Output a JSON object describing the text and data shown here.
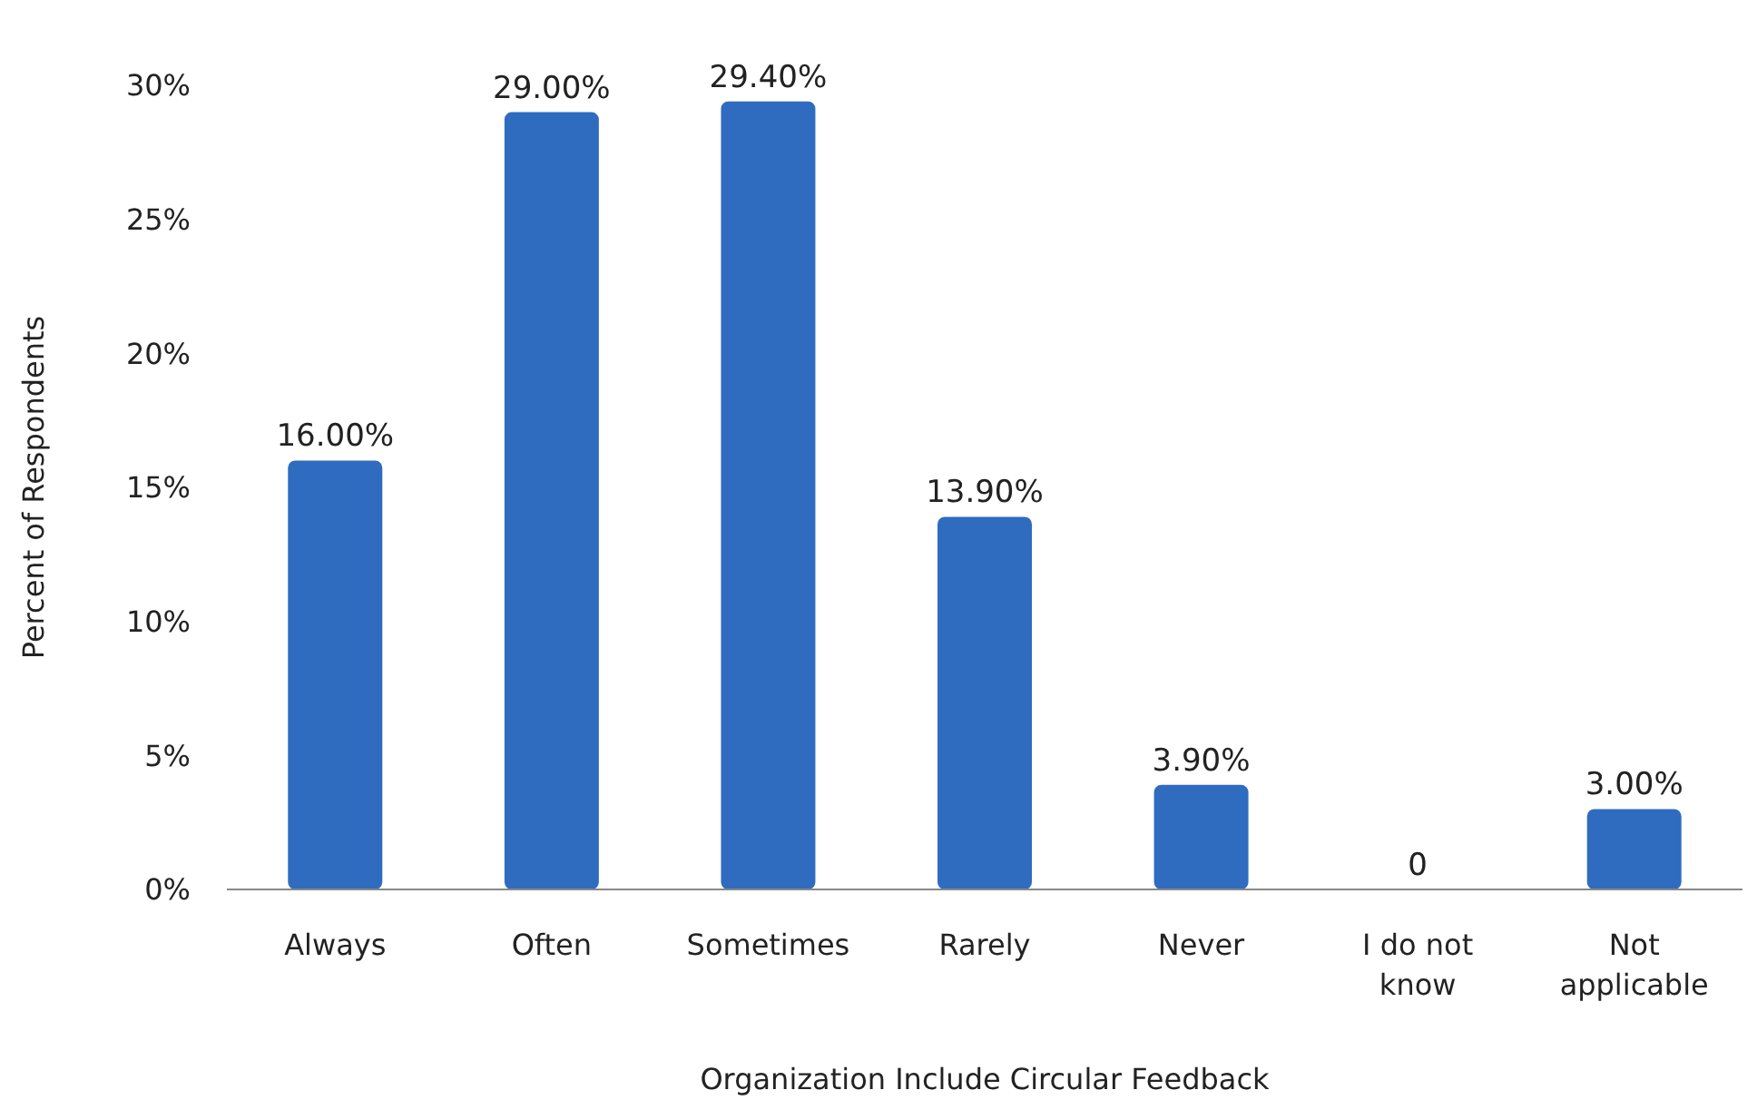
{
  "chart_data": {
    "type": "bar",
    "xlabel": "Organization Include Circular Feedback",
    "ylabel": "Percent of Respondents",
    "categories": [
      "Always",
      "Often",
      "Sometimes",
      "Rarely",
      "Never",
      "I do not know",
      "Not applicable"
    ],
    "values": [
      16,
      29,
      29.4,
      13.9,
      3.9,
      0,
      3
    ],
    "value_labels": [
      "16.00%",
      "29.00%",
      "29.40%",
      "13.90%",
      "3.90%",
      "0",
      "3.00%"
    ],
    "color": "#2f6cc0",
    "ylim": [
      0,
      30
    ],
    "yticks": [
      {
        "value": 0,
        "label": "0%"
      },
      {
        "value": 5,
        "label": "5%"
      },
      {
        "value": 10,
        "label": "10%"
      },
      {
        "value": 15,
        "label": "15%"
      },
      {
        "value": 20,
        "label": "20%"
      },
      {
        "value": 25,
        "label": "25%"
      },
      {
        "value": 30,
        "label": "30%"
      }
    ],
    "grid": false
  }
}
